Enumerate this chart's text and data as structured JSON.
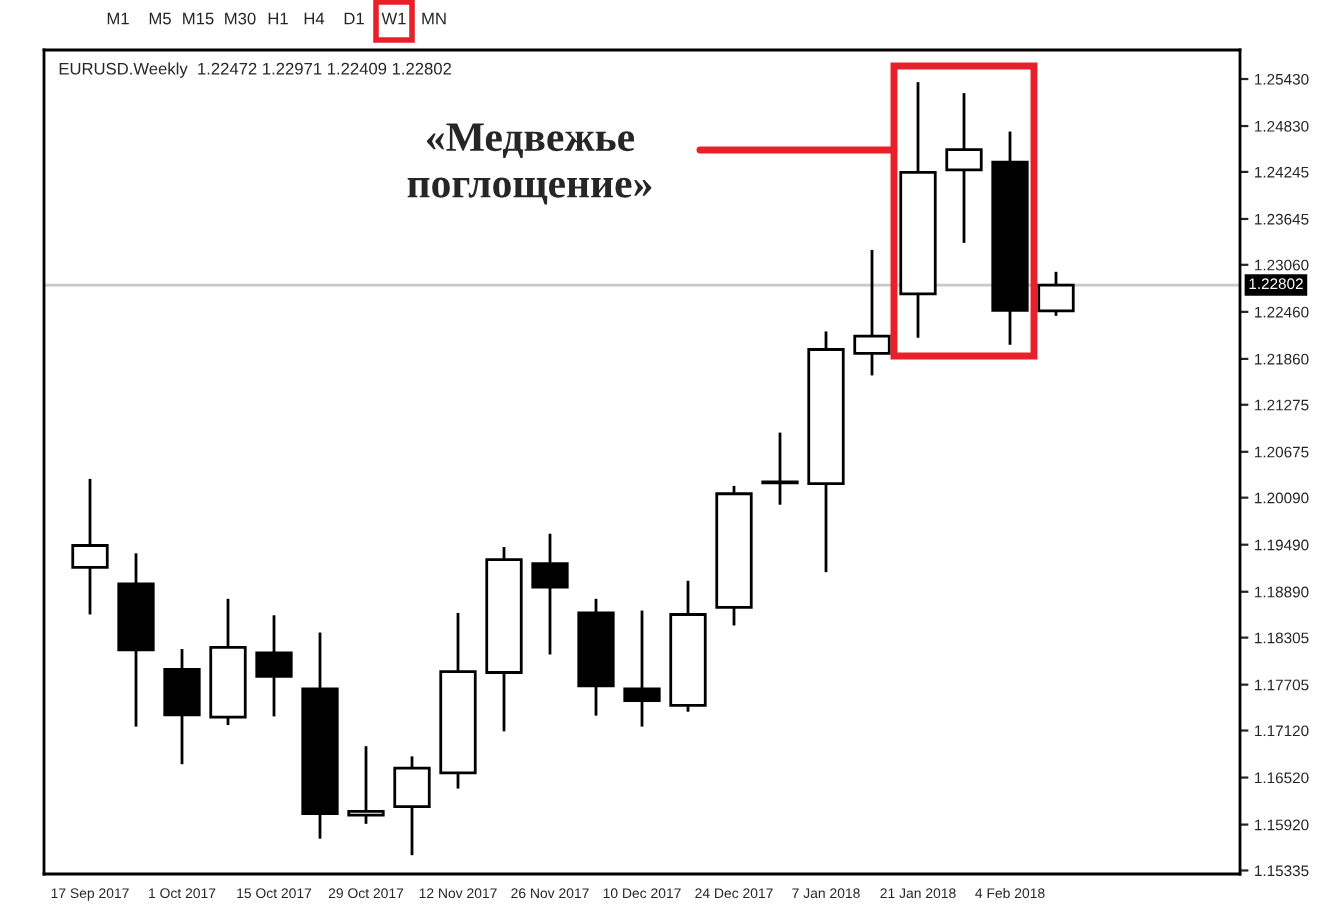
{
  "chart_data": {
    "type": "candlestick",
    "title": "EURUSD.Weekly  1.22472 1.22971 1.22409 1.22802",
    "x": [
      "2017-09-17",
      "2017-09-24",
      "2017-10-01",
      "2017-10-08",
      "2017-10-15",
      "2017-10-22",
      "2017-10-29",
      "2017-11-05",
      "2017-11-12",
      "2017-11-19",
      "2017-11-26",
      "2017-12-03",
      "2017-12-10",
      "2017-12-17",
      "2017-12-24",
      "2017-12-31",
      "2018-01-07",
      "2018-01-14",
      "2018-01-21",
      "2018-01-28",
      "2018-02-04",
      "2018-02-11"
    ],
    "xlim": [
      "2017-09-10",
      "2018-03-11"
    ],
    "xticks": [
      {
        "value": "2017-09-17",
        "label": "17 Sep 2017"
      },
      {
        "value": "2017-10-01",
        "label": "1 Oct 2017"
      },
      {
        "value": "2017-10-15",
        "label": "15 Oct 2017"
      },
      {
        "value": "2017-10-29",
        "label": "29 Oct 2017"
      },
      {
        "value": "2017-11-12",
        "label": "12 Nov 2017"
      },
      {
        "value": "2017-11-26",
        "label": "26 Nov 2017"
      },
      {
        "value": "2017-12-10",
        "label": "10 Dec 2017"
      },
      {
        "value": "2017-12-24",
        "label": "24 Dec 2017"
      },
      {
        "value": "2018-01-07",
        "label": "7 Jan 2018"
      },
      {
        "value": "2018-01-21",
        "label": "21 Jan 2018"
      },
      {
        "value": "2018-02-04",
        "label": "4 Feb 2018"
      }
    ],
    "ohlc": [
      [
        1.192,
        1.2033,
        1.186,
        1.1948
      ],
      [
        1.1899,
        1.1938,
        1.1717,
        1.1815
      ],
      [
        1.179,
        1.1816,
        1.1669,
        1.1732
      ],
      [
        1.1729,
        1.188,
        1.1719,
        1.1818
      ],
      [
        1.1811,
        1.1859,
        1.173,
        1.1781
      ],
      [
        1.1765,
        1.1837,
        1.1574,
        1.1606
      ],
      [
        1.1604,
        1.1692,
        1.1593,
        1.1609
      ],
      [
        1.1615,
        1.1679,
        1.1553,
        1.1664
      ],
      [
        1.1658,
        1.1862,
        1.1638,
        1.1787
      ],
      [
        1.1786,
        1.1946,
        1.1711,
        1.193
      ],
      [
        1.1925,
        1.1963,
        1.1809,
        1.1895
      ],
      [
        1.1862,
        1.188,
        1.1731,
        1.1769
      ],
      [
        1.1765,
        1.1865,
        1.1717,
        1.175
      ],
      [
        1.1744,
        1.1903,
        1.1736,
        1.186
      ],
      [
        1.1869,
        1.2024,
        1.1846,
        1.2014
      ],
      [
        1.2028,
        1.2092,
        1.2,
        1.2029
      ],
      [
        1.2027,
        1.2221,
        1.1914,
        1.2198
      ],
      [
        1.2193,
        1.2325,
        1.2165,
        1.2215
      ],
      [
        1.2269,
        1.2539,
        1.2213,
        1.2424
      ],
      [
        1.2427,
        1.2525,
        1.2334,
        1.2453
      ],
      [
        1.2437,
        1.2476,
        1.2204,
        1.2248
      ],
      [
        1.22472,
        1.22971,
        1.22409,
        1.22802
      ]
    ],
    "ylim": [
      1.1529,
      1.258
    ],
    "yticks": [
      {
        "value": 1.2543,
        "label": "1.25430"
      },
      {
        "value": 1.2483,
        "label": "1.24830"
      },
      {
        "value": 1.24245,
        "label": "1.24245"
      },
      {
        "value": 1.23645,
        "label": "1.23645"
      },
      {
        "value": 1.2306,
        "label": "1.23060"
      },
      {
        "value": 1.2246,
        "label": "1.22460"
      },
      {
        "value": 1.2186,
        "label": "1.21860"
      },
      {
        "value": 1.21275,
        "label": "1.21275"
      },
      {
        "value": 1.20675,
        "label": "1.20675"
      },
      {
        "value": 1.2009,
        "label": "1.20090"
      },
      {
        "value": 1.1949,
        "label": "1.19490"
      },
      {
        "value": 1.1889,
        "label": "1.18890"
      },
      {
        "value": 1.18305,
        "label": "1.18305"
      },
      {
        "value": 1.17705,
        "label": "1.17705"
      },
      {
        "value": 1.1712,
        "label": "1.17120"
      },
      {
        "value": 1.1652,
        "label": "1.16520"
      },
      {
        "value": 1.1592,
        "label": "1.15920"
      },
      {
        "value": 1.15335,
        "label": "1.15335"
      }
    ],
    "ref_lines": [
      {
        "axis": "y",
        "value": 1.22802,
        "label": "1.22802",
        "color": "#c8c8c8"
      }
    ],
    "annotations": [
      "«Медвежье\nпоглощение»",
      "M1",
      "M5",
      "M15",
      "M30",
      "H1",
      "H4",
      "D1",
      "W1",
      "MN"
    ]
  }
}
